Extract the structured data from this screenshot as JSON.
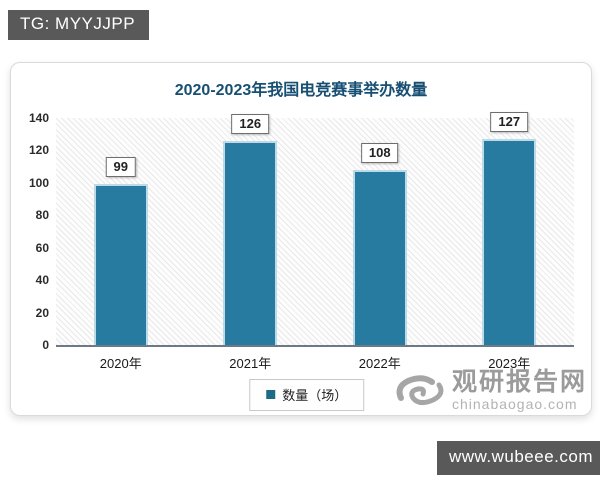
{
  "page": {
    "top_badge": "TG: MYYJJPP",
    "bottom_badge": "www.wubeee.com"
  },
  "watermark": {
    "name": "观研报告网",
    "domain": "chinabaogao.com",
    "logo": "swirl-icon"
  },
  "chart_data": {
    "type": "bar",
    "title": "2020-2023年我国电竞赛事举办数量",
    "categories": [
      "2020年",
      "2021年",
      "2022年",
      "2023年"
    ],
    "values": [
      99,
      126,
      108,
      127
    ],
    "series_name": "数量（场）",
    "xlabel": "",
    "ylabel": "",
    "ylim": [
      0,
      140
    ],
    "yticks": [
      0,
      20,
      40,
      60,
      80,
      100,
      120,
      140
    ],
    "grid": false,
    "legend_position": "bottom",
    "plot_background": "diagonal-hatch",
    "bar_color": "#277aa0",
    "bar_edge_color": "#bcdae7",
    "legend_marker_color": "#1e6b85",
    "title_color": "#174f73",
    "badge_bg_color": "#595959"
  }
}
